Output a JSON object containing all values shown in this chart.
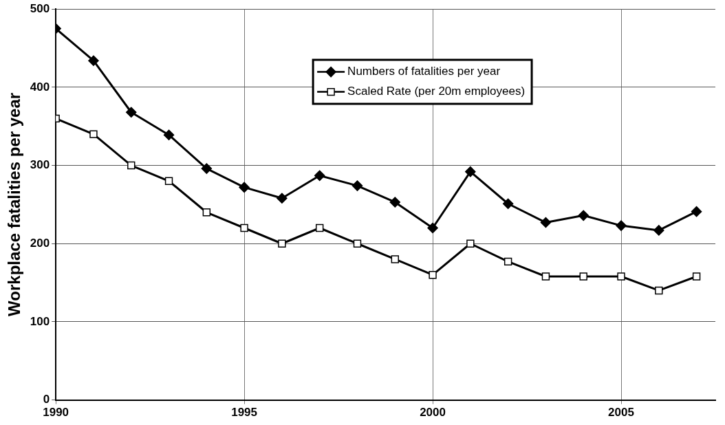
{
  "chart_data": {
    "type": "line",
    "ylabel": "Workplace fatalities per year",
    "x": [
      1990,
      1991,
      1992,
      1993,
      1994,
      1995,
      1996,
      1997,
      1998,
      1999,
      2000,
      2001,
      2002,
      2003,
      2004,
      2005,
      2006,
      2007
    ],
    "series": [
      {
        "name": "Numbers of fatalities per year",
        "color": "#000000",
        "marker": "diamond",
        "values": [
          475,
          434,
          368,
          339,
          296,
          272,
          258,
          287,
          274,
          253,
          220,
          292,
          251,
          227,
          236,
          223,
          217,
          241
        ]
      },
      {
        "name": "Scaled Rate (per 20m employees)",
        "color": "#000000",
        "marker": "square",
        "values": [
          360,
          340,
          300,
          280,
          240,
          220,
          200,
          220,
          200,
          180,
          160,
          200,
          177,
          158,
          158,
          158,
          140,
          158
        ]
      }
    ],
    "xlim": [
      1990,
      2007.5
    ],
    "xticks": [
      1990,
      1995,
      2000,
      2005
    ],
    "ylim": [
      0,
      500
    ],
    "yticks": [
      0,
      100,
      200,
      300,
      400,
      500
    ],
    "grid": true,
    "legend": "top",
    "line_style": "solid"
  }
}
